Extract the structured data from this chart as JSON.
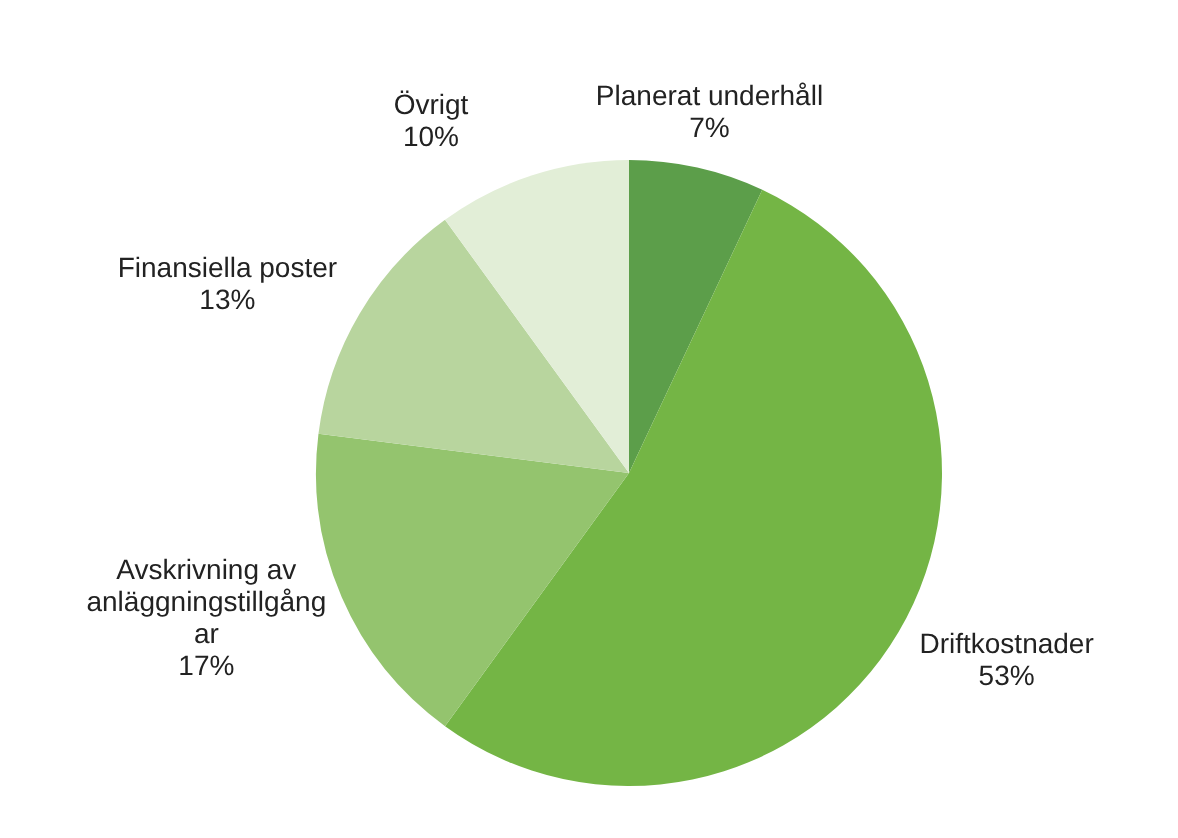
{
  "chart_data": {
    "type": "pie",
    "categories": [
      "Planerat underhåll",
      "Driftkostnader",
      "Avskrivning av anläggningstillgångar",
      "Finansiella poster",
      "Övrigt"
    ],
    "values": [
      7,
      53,
      17,
      13,
      10
    ],
    "value_labels": [
      "7%",
      "53%",
      "17%",
      "13%",
      "10%"
    ],
    "colors": [
      "#5c9e4a",
      "#74b545",
      "#94c46e",
      "#b8d59e",
      "#e2eed7"
    ],
    "legend": false
  }
}
